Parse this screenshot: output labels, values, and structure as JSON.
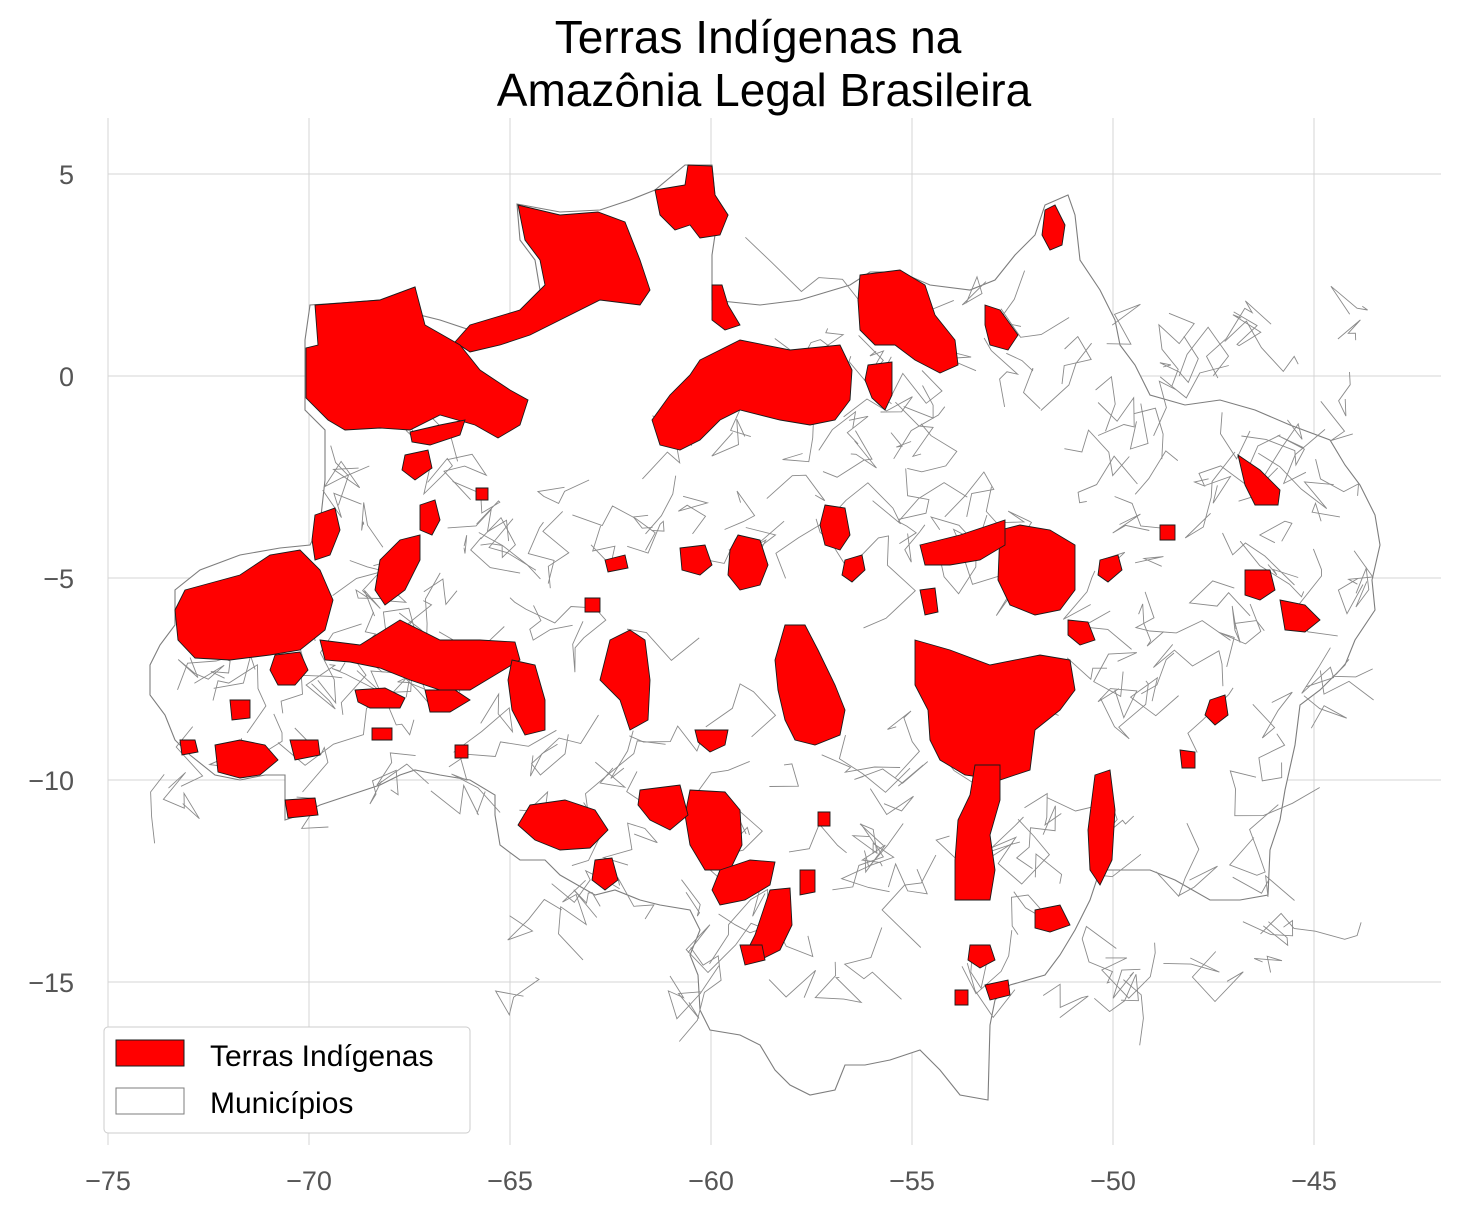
{
  "title": {
    "line1": "Terras Indígenas na",
    "line2": "Amazônia Legal Brasileira"
  },
  "axes": {
    "x_ticks": [
      "−75",
      "−70",
      "−65",
      "−60",
      "−55",
      "−50",
      "−45"
    ],
    "x_tick_values": [
      -75,
      -70,
      -65,
      -60,
      -55,
      -50,
      -45
    ],
    "y_ticks": [
      "5",
      "0",
      "−5",
      "−10",
      "−15"
    ],
    "y_tick_values": [
      5,
      0,
      -5,
      -10,
      -15
    ],
    "xlim": [
      -75.0,
      -41.8
    ],
    "ylim": [
      -19.2,
      6.4
    ],
    "grid": true
  },
  "legend": {
    "placement": "lower-left",
    "items": [
      {
        "label": "Terras Indígenas",
        "color": "#ff0000"
      },
      {
        "label": "Municípios",
        "color": "#ffffff"
      }
    ]
  },
  "colors": {
    "terras_indigenas": "#ff0000",
    "municipios_fill": "#ffffff",
    "municipios_edge": "#7d7d7d",
    "grid": "#d4d4d4"
  }
}
